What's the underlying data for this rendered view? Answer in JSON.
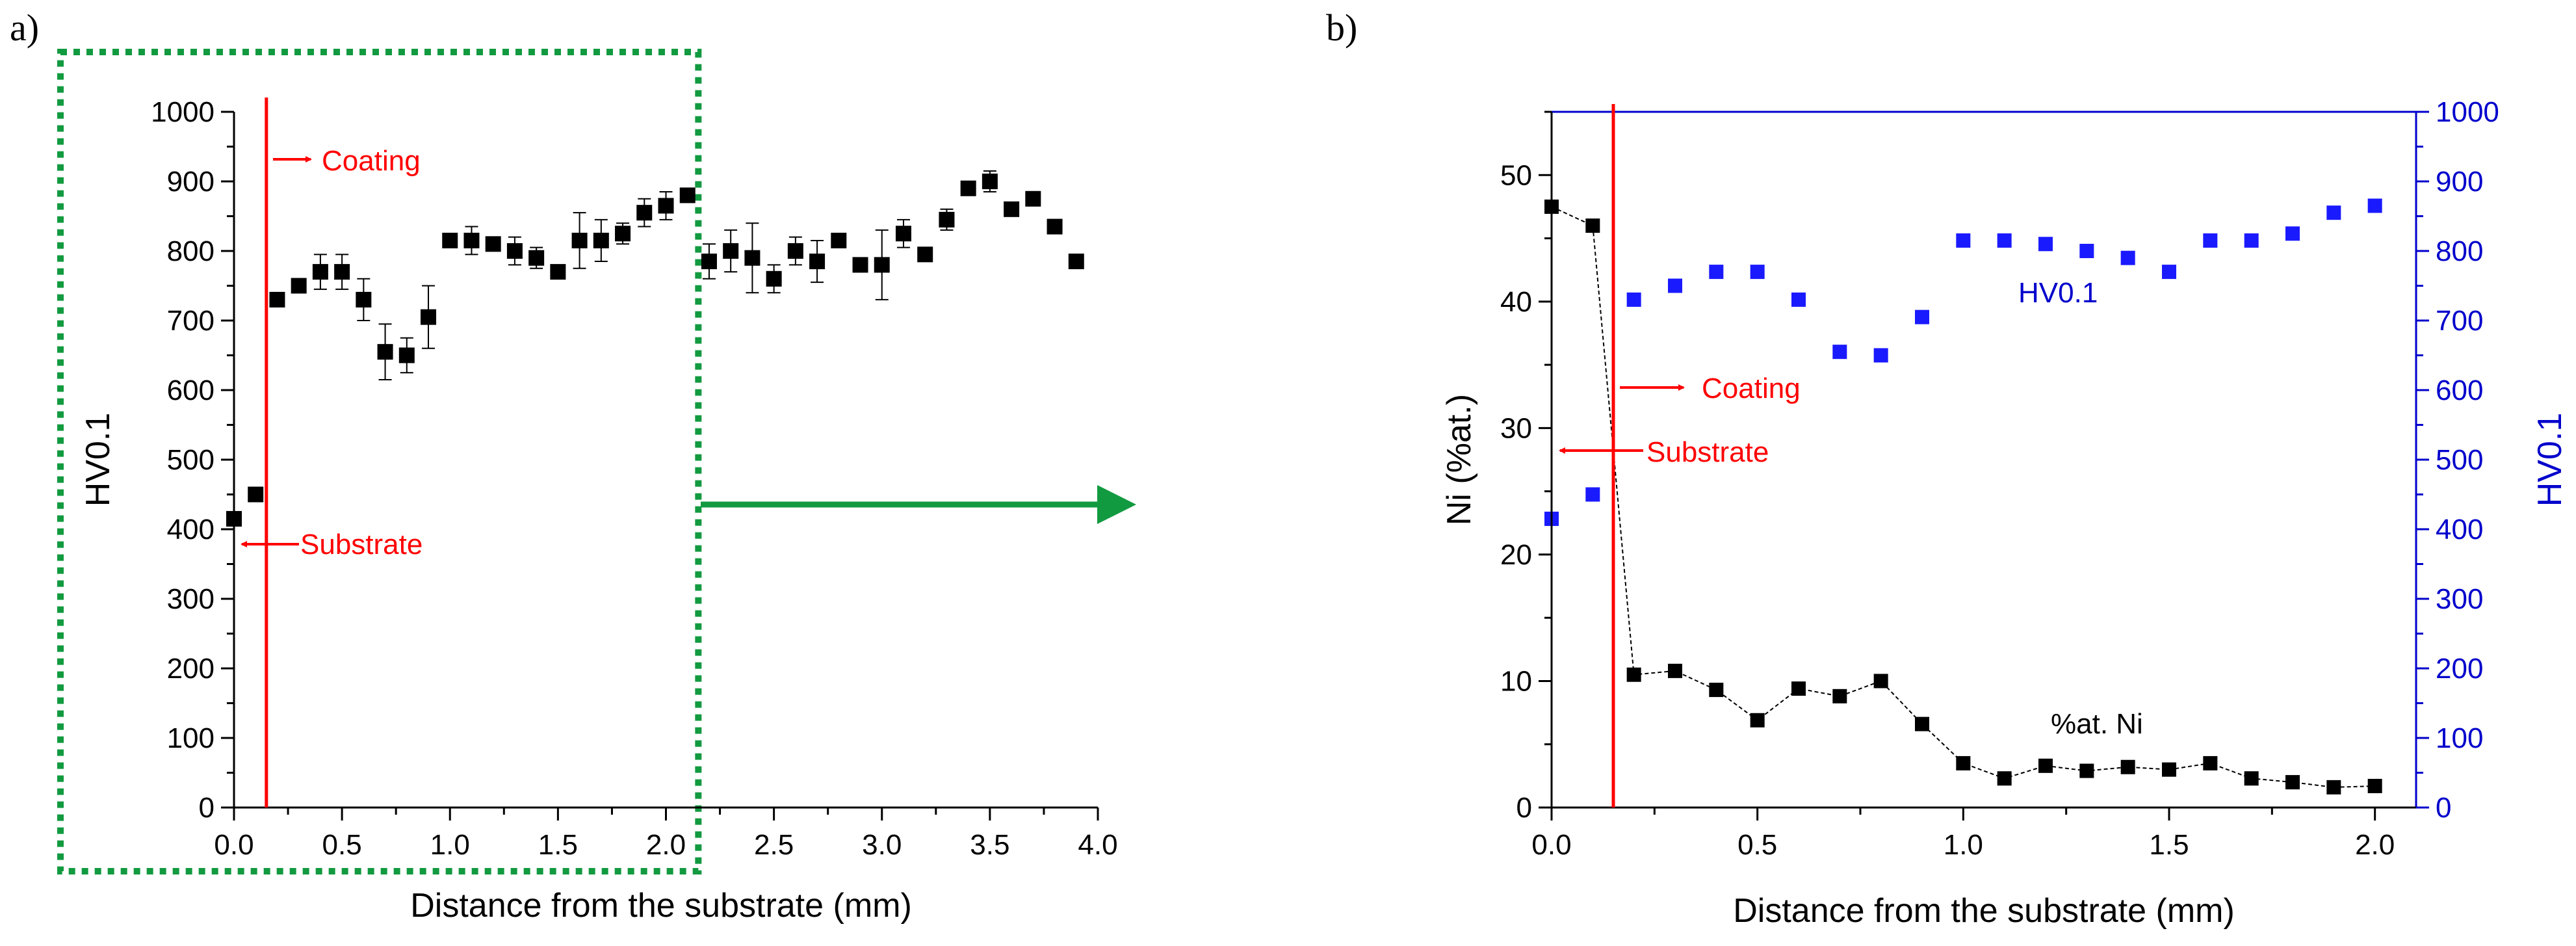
{
  "panels": {
    "a_label": "a)",
    "b_label": "b)"
  },
  "colors": {
    "axis": "#000000",
    "marker": "#000000",
    "interface": "#ff0000",
    "dotted_box": "#129a40",
    "arrow": "#129a40",
    "hv_series": "#1a1aff",
    "right_axis": "#0000cc"
  },
  "chart_data": [
    {
      "id": "a",
      "type": "scatter",
      "title": "",
      "xlabel": "Distance from the substrate (mm)",
      "ylabel": "HV0.1",
      "xlim": [
        0,
        4.0
      ],
      "ylim": [
        0,
        1000
      ],
      "xticks": [
        0.0,
        0.5,
        1.0,
        1.5,
        2.0,
        2.5,
        3.0,
        3.5,
        4.0
      ],
      "xtick_labels": [
        "0.0",
        "0.5",
        "1.0",
        "1.5",
        "2.0",
        "2.5",
        "3.0",
        "3.5",
        "4.0"
      ],
      "yticks": [
        0,
        100,
        200,
        300,
        400,
        500,
        600,
        700,
        800,
        900,
        1000
      ],
      "ytick_labels": [
        "0",
        "100",
        "200",
        "300",
        "400",
        "500",
        "600",
        "700",
        "800",
        "900",
        "1000"
      ],
      "interface_x": 0.15,
      "dotted_box_xrange": [
        0.0,
        2.15
      ],
      "annotations": {
        "coating": "Coating",
        "substrate": "Substrate"
      },
      "series": [
        {
          "name": "HV0.1",
          "x": [
            0.0,
            0.1,
            0.2,
            0.3,
            0.4,
            0.5,
            0.6,
            0.7,
            0.8,
            0.9,
            1.0,
            1.1,
            1.2,
            1.3,
            1.4,
            1.5,
            1.6,
            1.7,
            1.8,
            1.9,
            2.0,
            2.1,
            2.2,
            2.3,
            2.4,
            2.5,
            2.6,
            2.7,
            2.8,
            2.9,
            3.0,
            3.1,
            3.2,
            3.3,
            3.4,
            3.5,
            3.6,
            3.7,
            3.8,
            3.9
          ],
          "y": [
            415,
            450,
            730,
            750,
            770,
            770,
            730,
            655,
            650,
            705,
            815,
            815,
            810,
            800,
            790,
            770,
            815,
            815,
            825,
            855,
            865,
            880,
            785,
            800,
            790,
            760,
            800,
            785,
            815,
            780,
            780,
            825,
            795,
            845,
            890,
            900,
            860,
            875,
            835,
            785
          ],
          "err": [
            0,
            10,
            0,
            10,
            25,
            25,
            30,
            40,
            25,
            45,
            0,
            20,
            0,
            20,
            15,
            0,
            40,
            30,
            15,
            20,
            20,
            0,
            25,
            30,
            50,
            20,
            20,
            30,
            0,
            0,
            50,
            20,
            0,
            15,
            0,
            15,
            0,
            0,
            0,
            0
          ]
        }
      ]
    },
    {
      "id": "b",
      "type": "scatter",
      "title": "",
      "xlabel": "Distance from the substrate (mm)",
      "ylabel": "Ni (%at.)",
      "y2label": "HV0.1",
      "xlim": [
        0,
        2.1
      ],
      "ylim": [
        0,
        55
      ],
      "y2lim": [
        0,
        1000
      ],
      "xticks": [
        0.0,
        0.5,
        1.0,
        1.5,
        2.0
      ],
      "xtick_labels": [
        "0.0",
        "0.5",
        "1.0",
        "1.5",
        "2.0"
      ],
      "yticks": [
        0,
        10,
        20,
        30,
        40,
        50
      ],
      "ytick_labels": [
        "0",
        "10",
        "20",
        "30",
        "40",
        "50"
      ],
      "y2ticks": [
        0,
        100,
        200,
        300,
        400,
        500,
        600,
        700,
        800,
        900,
        1000
      ],
      "y2tick_labels": [
        "0",
        "100",
        "200",
        "300",
        "400",
        "500",
        "600",
        "700",
        "800",
        "900",
        "1000"
      ],
      "interface_x": 0.15,
      "annotations": {
        "coating": "Coating",
        "substrate": "Substrate",
        "hv_label": "HV0.1",
        "ni_label": "%at. Ni"
      },
      "series": [
        {
          "name": "%at. Ni",
          "axis": "left",
          "x": [
            0.0,
            0.1,
            0.2,
            0.3,
            0.4,
            0.5,
            0.6,
            0.7,
            0.8,
            0.9,
            1.0,
            1.1,
            1.2,
            1.3,
            1.4,
            1.5,
            1.6,
            1.7,
            1.8,
            1.9,
            2.0
          ],
          "y": [
            47.5,
            46.0,
            10.5,
            10.8,
            9.3,
            6.9,
            9.4,
            8.8,
            10.0,
            6.6,
            3.5,
            2.3,
            3.3,
            2.9,
            3.2,
            3.0,
            3.5,
            2.3,
            2.0,
            1.6,
            1.7
          ]
        },
        {
          "name": "HV0.1",
          "axis": "right",
          "x": [
            0.0,
            0.1,
            0.2,
            0.3,
            0.4,
            0.5,
            0.6,
            0.7,
            0.8,
            0.9,
            1.0,
            1.1,
            1.2,
            1.3,
            1.4,
            1.5,
            1.6,
            1.7,
            1.8,
            1.9,
            2.0
          ],
          "y": [
            415,
            450,
            730,
            750,
            770,
            770,
            730,
            655,
            650,
            705,
            815,
            815,
            810,
            800,
            790,
            770,
            815,
            815,
            825,
            855,
            865
          ]
        }
      ]
    }
  ]
}
